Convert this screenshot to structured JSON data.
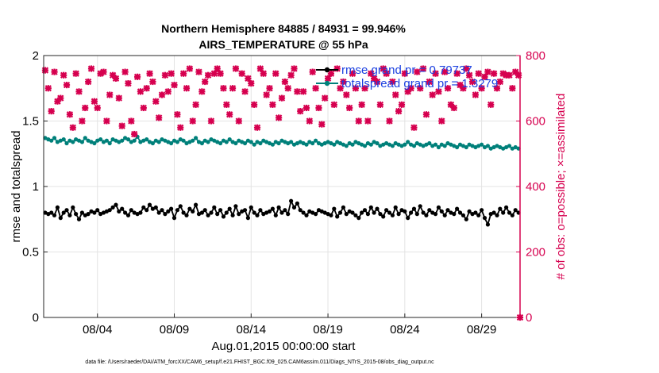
{
  "chart_data": {
    "type": "line",
    "title_line1": "Northern Hemisphere 84885 / 84931 = 99.946%",
    "title_line2": "AIRS_TEMPERATURE @ 55 hPa",
    "xlabel": "Aug.01,2015 00:00:00 start",
    "ylabel_left": "rmse and totalspread",
    "ylabel_right": "# of obs: o=possible; ×=assimilated",
    "footnote": "data file: /Users/raeder/DAI/ATM_forcXX/CAM6_setup/f.e21.FHIST_BGC.f09_025.CAM6assim.011/Diags_NTrS_2015-08/obs_diag_output.nc",
    "x_range": [
      0.5,
      31.5
    ],
    "x_ticks": [
      {
        "x": 4,
        "label": "08/04"
      },
      {
        "x": 9,
        "label": "08/09"
      },
      {
        "x": 14,
        "label": "08/14"
      },
      {
        "x": 19,
        "label": "08/19"
      },
      {
        "x": 24,
        "label": "08/24"
      },
      {
        "x": 29,
        "label": "08/29"
      }
    ],
    "ylim_left": [
      0,
      2
    ],
    "y_ticks_left": [
      {
        "v": 0,
        "label": "0"
      },
      {
        "v": 0.5,
        "label": "0.5"
      },
      {
        "v": 1,
        "label": "1"
      },
      {
        "v": 1.5,
        "label": "1.5"
      },
      {
        "v": 2,
        "label": "2"
      }
    ],
    "ylim_right": [
      0,
      800
    ],
    "y_ticks_right": [
      {
        "v": 0,
        "label": "0"
      },
      {
        "v": 200,
        "label": "200"
      },
      {
        "v": 400,
        "label": "400"
      },
      {
        "v": 600,
        "label": "600"
      },
      {
        "v": 800,
        "label": "800"
      }
    ],
    "grid": true,
    "legend_position": "top-right",
    "colors": {
      "rmse": "#000000",
      "spread": "#00807a",
      "obs": "#d6004f",
      "legend_text": "#1a3fe0"
    },
    "series": [
      {
        "name": "rmse grand pr = 0.79737",
        "axis": "left",
        "marker": "filled-circle",
        "y": [
          0.8,
          0.79,
          0.8,
          0.78,
          0.84,
          0.76,
          0.8,
          0.82,
          0.78,
          0.84,
          0.79,
          0.75,
          0.8,
          0.78,
          0.79,
          0.81,
          0.8,
          0.82,
          0.79,
          0.8,
          0.81,
          0.82,
          0.84,
          0.86,
          0.81,
          0.83,
          0.8,
          0.78,
          0.82,
          0.8,
          0.79,
          0.8,
          0.84,
          0.82,
          0.86,
          0.83,
          0.84,
          0.8,
          0.82,
          0.79,
          0.81,
          0.83,
          0.76,
          0.82,
          0.85,
          0.8,
          0.78,
          0.83,
          0.81,
          0.86,
          0.79,
          0.8,
          0.82,
          0.78,
          0.8,
          0.84,
          0.79,
          0.82,
          0.77,
          0.8,
          0.83,
          0.78,
          0.85,
          0.79,
          0.81,
          0.82,
          0.76,
          0.84,
          0.8,
          0.78,
          0.82,
          0.79,
          0.8,
          0.81,
          0.83,
          0.78,
          0.84,
          0.8,
          0.82,
          0.79,
          0.89,
          0.84,
          0.87,
          0.82,
          0.8,
          0.78,
          0.81,
          0.8,
          0.79,
          0.82,
          0.81,
          0.8,
          0.79,
          0.78,
          0.83,
          0.77,
          0.8,
          0.84,
          0.79,
          0.81,
          0.8,
          0.78,
          0.76,
          0.8,
          0.82,
          0.79,
          0.84,
          0.8,
          0.83,
          0.79,
          0.77,
          0.82,
          0.8,
          0.78,
          0.84,
          0.79,
          0.82,
          0.81,
          0.76,
          0.8,
          0.83,
          0.79,
          0.85,
          0.8,
          0.78,
          0.82,
          0.8,
          0.79,
          0.84,
          0.81,
          0.78,
          0.82,
          0.8,
          0.79,
          0.83,
          0.8,
          0.78,
          0.75,
          0.81,
          0.79,
          0.8,
          0.78,
          0.82,
          0.76,
          0.71,
          0.79,
          0.8,
          0.78,
          0.83,
          0.8,
          0.84,
          0.8,
          0.78,
          0.82,
          0.8
        ]
      },
      {
        "name": "totalspread grand pr = 1.3279",
        "axis": "left",
        "marker": "filled-circle",
        "y": [
          1.37,
          1.36,
          1.35,
          1.37,
          1.34,
          1.35,
          1.36,
          1.33,
          1.35,
          1.34,
          1.36,
          1.35,
          1.34,
          1.37,
          1.35,
          1.34,
          1.33,
          1.35,
          1.36,
          1.34,
          1.35,
          1.33,
          1.36,
          1.35,
          1.34,
          1.35,
          1.37,
          1.36,
          1.34,
          1.35,
          1.38,
          1.34,
          1.35,
          1.36,
          1.34,
          1.33,
          1.35,
          1.34,
          1.36,
          1.35,
          1.34,
          1.33,
          1.35,
          1.34,
          1.36,
          1.35,
          1.33,
          1.34,
          1.35,
          1.37,
          1.34,
          1.33,
          1.35,
          1.34,
          1.36,
          1.35,
          1.34,
          1.33,
          1.35,
          1.34,
          1.36,
          1.34,
          1.33,
          1.35,
          1.34,
          1.33,
          1.35,
          1.34,
          1.32,
          1.34,
          1.33,
          1.35,
          1.34,
          1.33,
          1.32,
          1.34,
          1.33,
          1.35,
          1.34,
          1.33,
          1.34,
          1.32,
          1.33,
          1.34,
          1.33,
          1.32,
          1.34,
          1.33,
          1.35,
          1.33,
          1.32,
          1.33,
          1.34,
          1.33,
          1.32,
          1.34,
          1.33,
          1.32,
          1.31,
          1.33,
          1.32,
          1.34,
          1.33,
          1.32,
          1.31,
          1.33,
          1.32,
          1.34,
          1.33,
          1.31,
          1.32,
          1.33,
          1.32,
          1.31,
          1.33,
          1.32,
          1.31,
          1.32,
          1.34,
          1.32,
          1.31,
          1.33,
          1.32,
          1.31,
          1.32,
          1.33,
          1.31,
          1.32,
          1.3,
          1.32,
          1.31,
          1.33,
          1.32,
          1.31,
          1.3,
          1.32,
          1.31,
          1.3,
          1.32,
          1.31,
          1.3,
          1.31,
          1.32,
          1.3,
          1.31,
          1.29,
          1.3,
          1.31,
          1.3,
          1.29,
          1.3,
          1.31,
          1.29,
          1.3,
          1.29
        ]
      },
      {
        "name": "obs",
        "axis": "right",
        "marker": "cross",
        "y": [
          755,
          700,
          630,
          750,
          660,
          670,
          740,
          710,
          620,
          580,
          745,
          690,
          600,
          640,
          720,
          760,
          660,
          640,
          745,
          750,
          600,
          680,
          740,
          730,
          670,
          585,
          750,
          715,
          600,
          560,
          735,
          690,
          640,
          700,
          745,
          720,
          660,
          610,
          680,
          740,
          690,
          745,
          710,
          620,
          580,
          745,
          700,
          760,
          600,
          650,
          750,
          690,
          720,
          740,
          600,
          745,
          760,
          745,
          700,
          650,
          620,
          700,
          760,
          600,
          745,
          690,
          730,
          715,
          650,
          580,
          760,
          745,
          680,
          700,
          650,
          745,
          610,
          670,
          720,
          700,
          740,
          760,
          690,
          630,
          690,
          640,
          600,
          750,
          700,
          640,
          590,
          670,
          730,
          745,
          650,
          760,
          700,
          720,
          680,
          640,
          745,
          700,
          600,
          650,
          700,
          600,
          745,
          730,
          720,
          650,
          760,
          745,
          600,
          720,
          680,
          630,
          650,
          745,
          690,
          700,
          580,
          750,
          700,
          760,
          620,
          720,
          680,
          745,
          690,
          600,
          750,
          700,
          650,
          640,
          745,
          710,
          700,
          760,
          740,
          720,
          680,
          745,
          700,
          735,
          750,
          650,
          745,
          700,
          720,
          745,
          740,
          740,
          700,
          750,
          740
        ]
      }
    ]
  }
}
